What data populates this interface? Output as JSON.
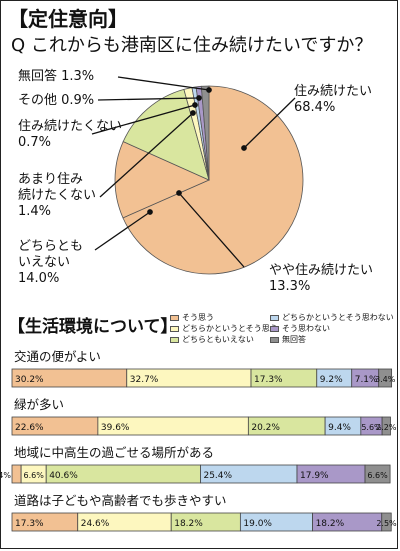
{
  "section1": {
    "title": "【定住意向】",
    "question": "Q これからも港南区に住み続けたいですか？"
  },
  "colors": {
    "want_to_live": "#f2c193",
    "somewhat_live": "#f2c193",
    "neither": "#d9e69f",
    "somewhat_not": "#fdf7bf",
    "not": "#bdd7ee",
    "other": "#a998c8",
    "no_answer": "#8f8f8f"
  },
  "chart_data": [
    {
      "type": "pie",
      "labels": [
        "住み続けたい",
        "やや住み続けたい",
        "どちらとも いえない",
        "あまり住み 続けたくない",
        "住み続けたくない",
        "その他",
        "無回答"
      ],
      "values": [
        68.4,
        13.3,
        14.0,
        1.4,
        0.7,
        0.9,
        1.3
      ]
    },
    {
      "type": "bar",
      "orientation": "horizontal",
      "stacked": true,
      "title": "【生活環境について】",
      "categories": [
        "交通の便がよい",
        "緑が多い",
        "地域に中高生の過ごせる場所がある",
        "道路は子どもや高齢者でも歩きやすい"
      ],
      "series": [
        {
          "name": "そう思う",
          "values": [
            30.2,
            22.6,
            2.4,
            17.3
          ]
        },
        {
          "name": "どちらかというとそう思う",
          "values": [
            32.7,
            39.6,
            6.6,
            24.6
          ]
        },
        {
          "name": "どちらともいえない",
          "values": [
            17.3,
            20.2,
            40.6,
            18.2
          ]
        },
        {
          "name": "どちらかというとそう思わない",
          "values": [
            9.2,
            9.4,
            25.4,
            19.0
          ]
        },
        {
          "name": "そう思わない",
          "values": [
            7.1,
            5.6,
            17.9,
            18.2
          ]
        },
        {
          "name": "無回答",
          "values": [
            3.4,
            2.2,
            6.6,
            2.5
          ]
        }
      ],
      "data_labels": [
        [
          "30.2%",
          "32.7%",
          "17.3%",
          "9.2%",
          "7.1%",
          "3.4%"
        ],
        [
          "22.6%",
          "39.6%",
          "20.2%",
          "9.4%",
          "5.6%",
          "2.2%"
        ],
        [
          "2.4%",
          "6.6%",
          "40.6%",
          "25.4%",
          "17.9%",
          "6.6%"
        ],
        [
          "17.3%",
          "24.6%",
          "18.2%",
          "19.0%",
          "18.2%",
          "2.5%"
        ]
      ]
    }
  ],
  "pie_labels": {
    "want": [
      "住み続けたい",
      "68.4%"
    ],
    "somewhat": [
      "やや住み続けたい",
      "13.3%"
    ],
    "neither": [
      "どちらとも",
      "いえない",
      "14.0%"
    ],
    "not_much": [
      "あまり住み",
      "続けたくない",
      "1.4%"
    ],
    "not": [
      "住み続けたくない",
      "0.7%"
    ],
    "other": "その他 0.9%",
    "noans": "無回答 1.3%"
  },
  "legend": [
    {
      "label": "そう思う",
      "color": "#f2c193"
    },
    {
      "label": "どちらかというとそう思う",
      "color": "#fdf7bf"
    },
    {
      "label": "どちらともいえない",
      "color": "#d9e69f"
    },
    {
      "label": "どちらかというとそう思わない",
      "color": "#bdd7ee"
    },
    {
      "label": "そう思わない",
      "color": "#a998c8"
    },
    {
      "label": "無回答",
      "color": "#8f8f8f"
    }
  ]
}
